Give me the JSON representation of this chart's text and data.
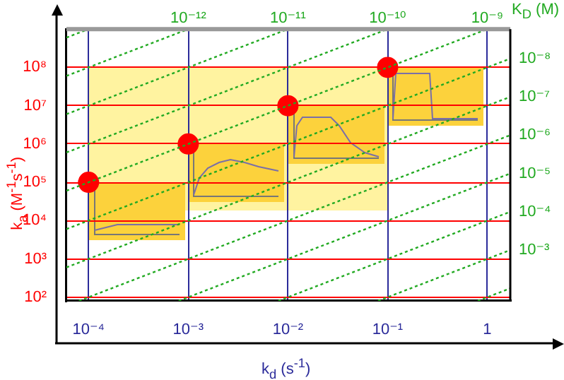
{
  "chart_data": {
    "type": "line",
    "xlabel": "k$_{d}$ (s$^{-1}$)",
    "ylabel": "k$_{a}$ (M$^{-1}$s$^{-1}$)",
    "annotations": [
      "K$_{D}$ (M)"
    ],
    "log": "xy",
    "grid": true,
    "xlim": [
      6e-05,
      1.7
    ],
    "ylim": [
      80,
      1000000000
    ],
    "xticks": [
      {
        "value": 0.0001,
        "label": "10⁻⁴"
      },
      {
        "value": 0.001,
        "label": "10⁻³"
      },
      {
        "value": 0.01,
        "label": "10⁻²"
      },
      {
        "value": 0.1,
        "label": "10⁻¹"
      },
      1
    ],
    "yticks": [
      {
        "value": 100,
        "label": "10²"
      },
      {
        "value": 1000,
        "label": "10³"
      },
      {
        "value": 10000,
        "label": "10⁴"
      },
      {
        "value": 100000,
        "label": "10⁵"
      },
      {
        "value": 1000000,
        "label": "10⁶"
      },
      {
        "value": 10000000,
        "label": "10⁷"
      },
      {
        "value": 100000000,
        "label": "10⁸"
      }
    ],
    "series": [
      {
        "color": "#22aa22",
        "line_style": "dotted",
        "marker": "none",
        "x": [
          6e-05,
          0.0001
        ],
        "values": [
          600000000,
          1000000000
        ]
      },
      {
        "name": "10⁻¹²",
        "color": "#22aa22",
        "line_style": "dotted",
        "marker": "none",
        "x": [
          6e-05,
          0.001
        ],
        "values": [
          60000000,
          1000000000
        ]
      },
      {
        "name": "10⁻¹¹",
        "color": "#22aa22",
        "line_style": "dotted",
        "marker": "none",
        "x": [
          6e-05,
          0.01
        ],
        "values": [
          6000000,
          1000000000
        ]
      },
      {
        "name": "10⁻¹⁰",
        "color": "#22aa22",
        "line_style": "dotted",
        "marker": "none",
        "x": [
          6e-05,
          0.1
        ],
        "values": [
          600000,
          1000000000
        ]
      },
      {
        "name": "10⁻⁹",
        "color": "#22aa22",
        "line_style": "dotted",
        "marker": "none",
        "x": [
          6e-05,
          1
        ],
        "values": [
          60000,
          1000000000
        ]
      },
      {
        "name": "10⁻⁸",
        "color": "#22aa22",
        "line_style": "dotted",
        "marker": "none",
        "x": [
          6e-05,
          1.7
        ],
        "values": [
          6000,
          170000000
        ]
      },
      {
        "name": "10⁻⁷",
        "color": "#22aa22",
        "line_style": "dotted",
        "marker": "none",
        "x": [
          6e-05,
          1.7
        ],
        "values": [
          600,
          17000000
        ]
      },
      {
        "name": "10⁻⁶",
        "color": "#22aa22",
        "line_style": "dotted",
        "marker": "none",
        "x": [
          8e-05,
          1.7
        ],
        "values": [
          80,
          1700000
        ]
      },
      {
        "name": "10⁻⁵",
        "color": "#22aa22",
        "line_style": "dotted",
        "marker": "none",
        "x": [
          0.0008,
          1.7
        ],
        "values": [
          80,
          170000
        ]
      },
      {
        "name": "10⁻⁴",
        "color": "#22aa22",
        "line_style": "dotted",
        "marker": "none",
        "x": [
          0.008,
          1.7
        ],
        "values": [
          80,
          17000
        ]
      },
      {
        "name": "10⁻³",
        "color": "#22aa22",
        "line_style": "dotted",
        "marker": "none",
        "x": [
          0.08,
          1.7
        ],
        "values": [
          80,
          1700
        ]
      },
      {
        "color": "#22aa22",
        "line_style": "dotted",
        "marker": "none",
        "x": [
          0.8,
          1.7
        ],
        "values": [
          80,
          170
        ]
      },
      {
        "type": "scatter",
        "color": "#ff0000",
        "marker": "circle",
        "x": [
          0.0001,
          0.001,
          0.01,
          0.1
        ],
        "values": [
          100000,
          1000000,
          10000000,
          100000000
        ]
      }
    ]
  }
}
